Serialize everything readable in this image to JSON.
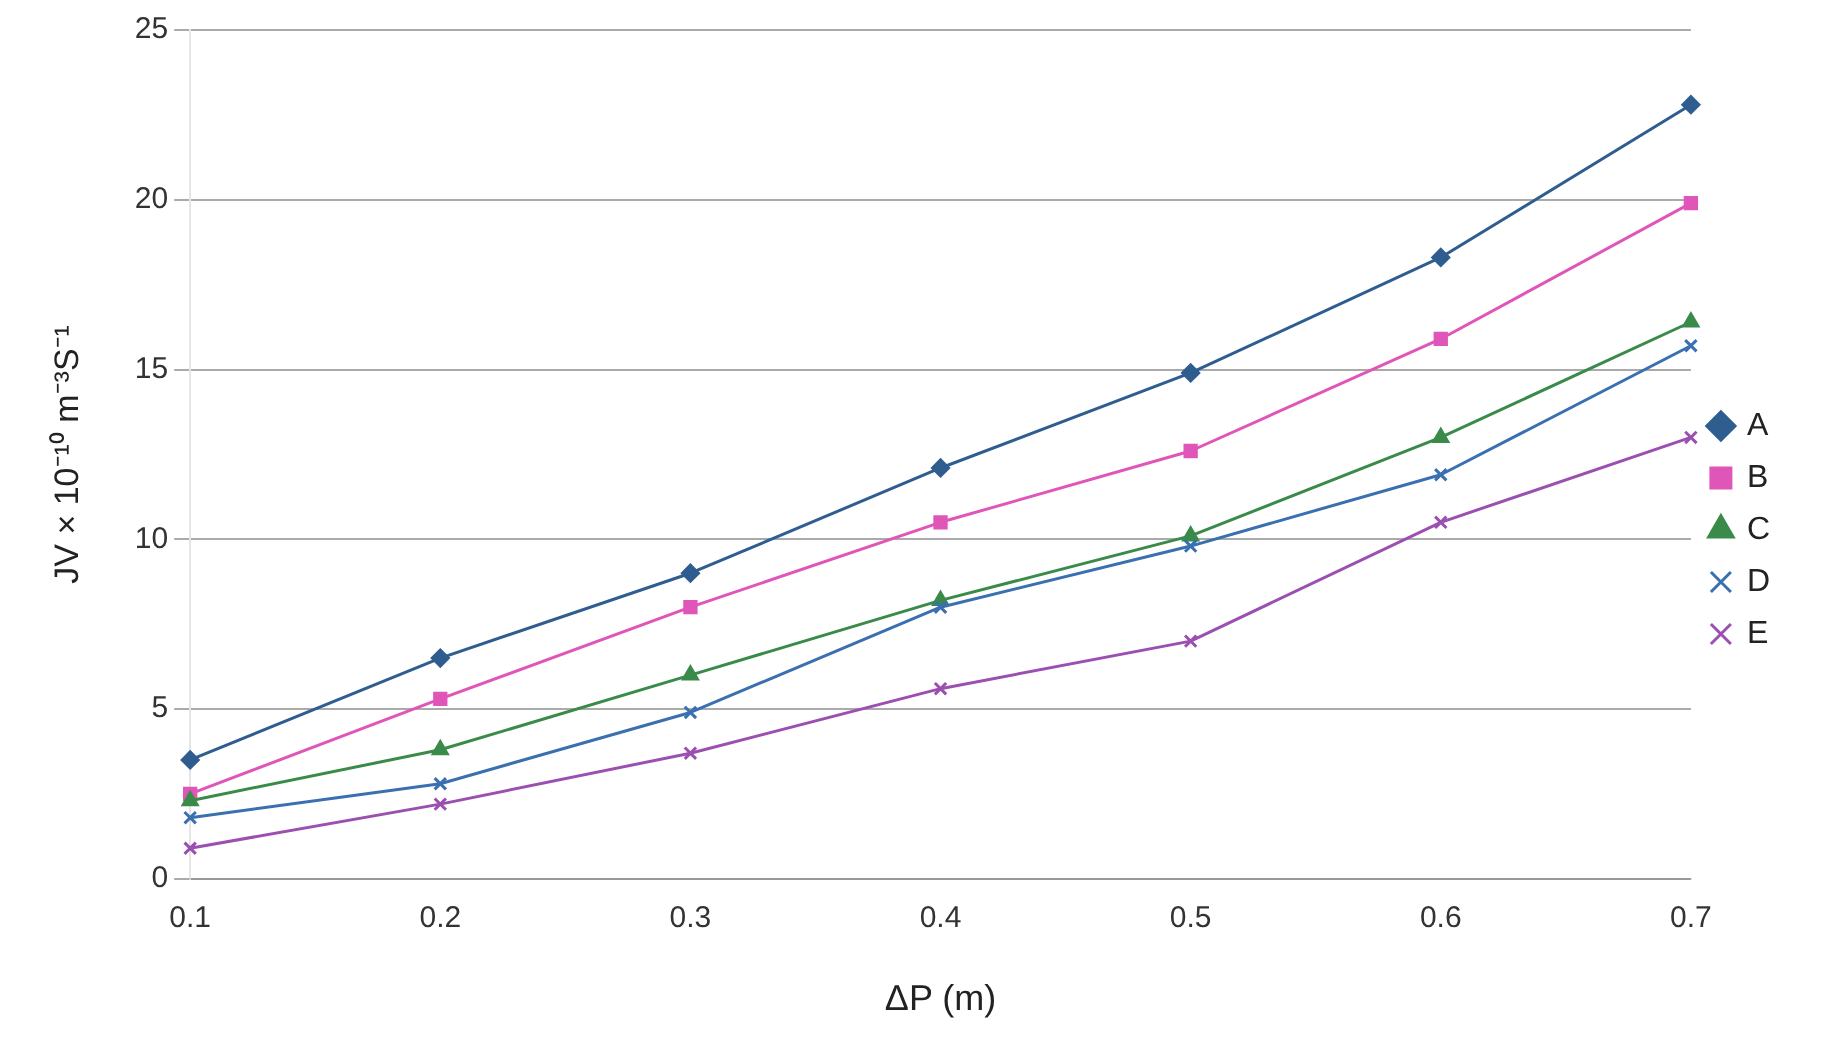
{
  "chart_data": {
    "type": "line",
    "xlabel": "ΔP (m)",
    "ylabel": "JV × 10⁻¹⁰ m⁻³S⁻¹",
    "categories": [
      "0.1",
      "0.2",
      "0.3",
      "0.4",
      "0.5",
      "0.6",
      "0.7"
    ],
    "series": [
      {
        "name": "A",
        "color": "#2f5d8f",
        "marker": "diamond",
        "values": [
          3.5,
          6.5,
          9.0,
          12.1,
          14.9,
          18.3,
          22.8
        ]
      },
      {
        "name": "B",
        "color": "#e055b8",
        "marker": "square",
        "values": [
          2.5,
          5.3,
          8.0,
          10.5,
          12.6,
          15.9,
          19.9
        ]
      },
      {
        "name": "C",
        "color": "#3a8a4a",
        "marker": "triangle",
        "values": [
          2.3,
          3.8,
          6.0,
          8.2,
          10.1,
          13.0,
          16.4
        ]
      },
      {
        "name": "D",
        "color": "#3a6fb0",
        "marker": "cross",
        "values": [
          1.8,
          2.8,
          4.9,
          8.0,
          9.8,
          11.9,
          15.7
        ]
      },
      {
        "name": "E",
        "color": "#9b4fb0",
        "marker": "cross",
        "values": [
          0.9,
          2.2,
          3.7,
          5.6,
          7.0,
          10.5,
          13.0
        ]
      }
    ],
    "ylim": [
      0,
      25
    ],
    "yticks": [
      0,
      5,
      10,
      15,
      20,
      25
    ],
    "grid": "y",
    "legend": "right",
    "line_style": "solid"
  }
}
